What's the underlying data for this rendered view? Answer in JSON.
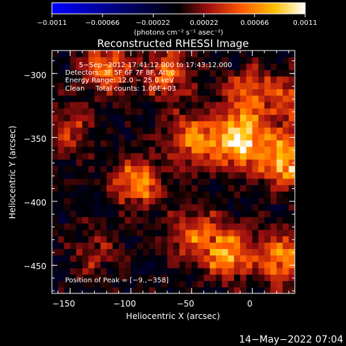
{
  "chart_data": {
    "type": "heatmap",
    "title": "Reconstructed RHESSI Image",
    "xlabel": "Heliocentric X (arcsec)",
    "ylabel": "Heliocentric Y (arcsec)",
    "xlim": [
      -165,
      35
    ],
    "ylim": [
      -472,
      -282
    ],
    "x_ticks": [
      -150,
      -100,
      -50,
      0
    ],
    "x_tick_labels": [
      "−150",
      "−100",
      "−50",
      "0"
    ],
    "y_ticks": [
      -300,
      -350,
      -400,
      -450
    ],
    "y_tick_labels": [
      "−300",
      "−350",
      "−400",
      "−450"
    ],
    "annotations": [
      "5−Sep−2012 17:41:12.000 to 17:43:12.000",
      "Detectors: 3F 5F 6F 7F 8F, Att 0",
      "Energy Range: 12.0 − 25.0 keV",
      "Clean     Total counts: 1.06E+03"
    ],
    "peak_label": "Position of Peak = [−9.,−358]",
    "peak": [
      -9,
      -358
    ],
    "colorbar": {
      "min": -0.0011,
      "max": 0.0011,
      "tick_labels": [
        "−0.0011",
        "−0.00066",
        "−0.00022",
        "0.00022",
        "0.00066",
        "0.0011"
      ],
      "unit_label": "(photons cm⁻² s⁻¹ asec⁻²)",
      "colors": [
        "#0000ff",
        "#000000",
        "#a01010",
        "#ff5a00",
        "#ffc000",
        "#ffffff"
      ]
    },
    "hotspots": [
      {
        "x": -10,
        "y": -352,
        "value": 0.00108
      },
      {
        "x": 28,
        "y": -368,
        "value": 0.0009
      },
      {
        "x": -48,
        "y": -352,
        "value": 0.0007
      },
      {
        "x": -120,
        "y": -295,
        "value": 0.0006
      },
      {
        "x": -70,
        "y": -300,
        "value": 0.00055
      },
      {
        "x": -95,
        "y": -385,
        "value": 0.0007
      },
      {
        "x": -20,
        "y": -440,
        "value": 0.00075
      },
      {
        "x": 25,
        "y": -445,
        "value": 0.0007
      },
      {
        "x": -48,
        "y": -425,
        "value": 0.00055
      },
      {
        "x": -5,
        "y": -315,
        "value": 0.0005
      },
      {
        "x": 28,
        "y": -320,
        "value": 0.0005
      },
      {
        "x": -150,
        "y": -345,
        "value": 0.0004
      },
      {
        "x": -130,
        "y": -440,
        "value": 0.0003
      }
    ]
  },
  "footer": {
    "timestamp": "14−May−2022 07:04"
  }
}
